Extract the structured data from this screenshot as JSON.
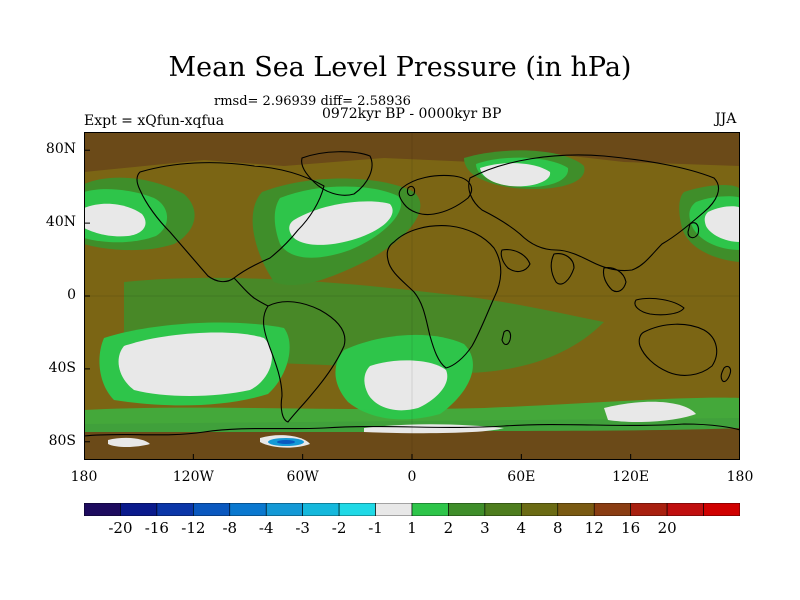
{
  "title": "Mean Sea Level Pressure (in hPa)",
  "stats": "rmsd= 2.96939 diff= 2.58936",
  "experiment": "Expt = xQfun-xqfua",
  "period": "0972kyr BP - 0000kyr BP",
  "season": "JJA",
  "map": {
    "projection": "cylindrical equidistant",
    "lat_range": [
      -90,
      90
    ],
    "lon_range": [
      -180,
      180
    ],
    "lat_ticks": [
      {
        "value": 80,
        "label": "80N"
      },
      {
        "value": 40,
        "label": "40N"
      },
      {
        "value": 0,
        "label": "0"
      },
      {
        "value": -40,
        "label": "40S"
      },
      {
        "value": -80,
        "label": "80S"
      }
    ],
    "lon_ticks": [
      {
        "value": -180,
        "label": "180"
      },
      {
        "value": -120,
        "label": "120W"
      },
      {
        "value": -60,
        "label": "60W"
      },
      {
        "value": 0,
        "label": "0"
      },
      {
        "value": 60,
        "label": "60E"
      },
      {
        "value": 120,
        "label": "120E"
      },
      {
        "value": 180,
        "label": "180"
      }
    ],
    "colors": {
      "positive_base": "#7b6514",
      "high_brown": "#6b4a18",
      "low_green": "#3f8e2a",
      "bright_green": "#2ec54a",
      "near_zero": "#e8e8e8",
      "coastline": "#000000"
    }
  },
  "colorbar": {
    "colors": [
      "#1d0b5e",
      "#0a1a8c",
      "#0b36a8",
      "#0a58bf",
      "#0a78cf",
      "#1499d6",
      "#15b8dc",
      "#1fd9e6",
      "#e8e8e8",
      "#2ec54a",
      "#3f8e2a",
      "#4e7d1e",
      "#6b6b14",
      "#7a5a12",
      "#8a3d12",
      "#a8200f",
      "#c00e0e",
      "#d00000"
    ],
    "labels": [
      "-20",
      "-16",
      "-12",
      "-8",
      "-4",
      "-3",
      "-2",
      "-1",
      "1",
      "2",
      "3",
      "4",
      "8",
      "12",
      "16",
      "20"
    ]
  }
}
